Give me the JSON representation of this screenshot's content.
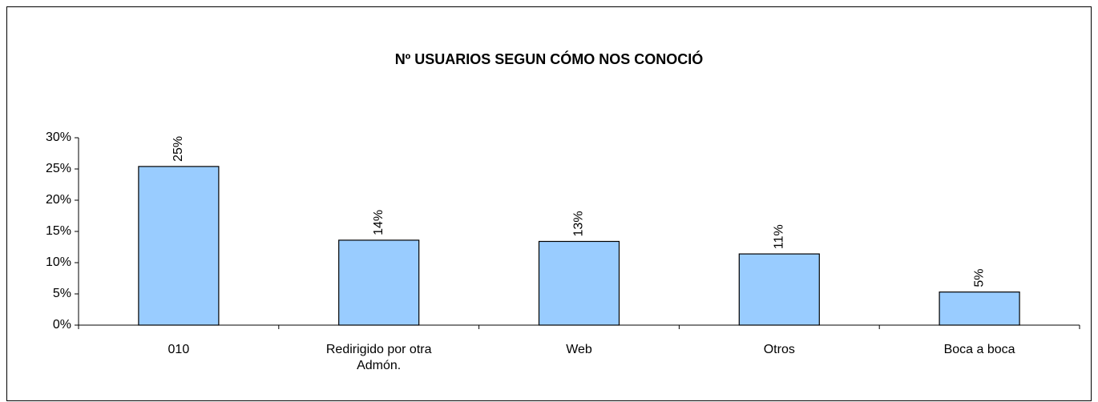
{
  "chart_data": {
    "type": "bar",
    "title": "Nº USUARIOS SEGUN CÓMO NOS CONOCIÓ",
    "categories": [
      "010",
      "Redirigido por otra Admón.",
      "Web",
      "Otros",
      "Boca a boca"
    ],
    "values": [
      25.4,
      13.6,
      13.4,
      11.4,
      5.3
    ],
    "value_labels": [
      "25%",
      "14%",
      "13%",
      "11%",
      "5%"
    ],
    "color": "#99ccff",
    "ylim": [
      0,
      30
    ],
    "yticks": [
      {
        "value": 0,
        "label": "0%"
      },
      {
        "value": 5,
        "label": "5%"
      },
      {
        "value": 10,
        "label": "10%"
      },
      {
        "value": 15,
        "label": "15%"
      },
      {
        "value": 20,
        "label": "20%"
      },
      {
        "value": 25,
        "label": "25%"
      },
      {
        "value": 30,
        "label": "30%"
      }
    ],
    "grid": false
  }
}
